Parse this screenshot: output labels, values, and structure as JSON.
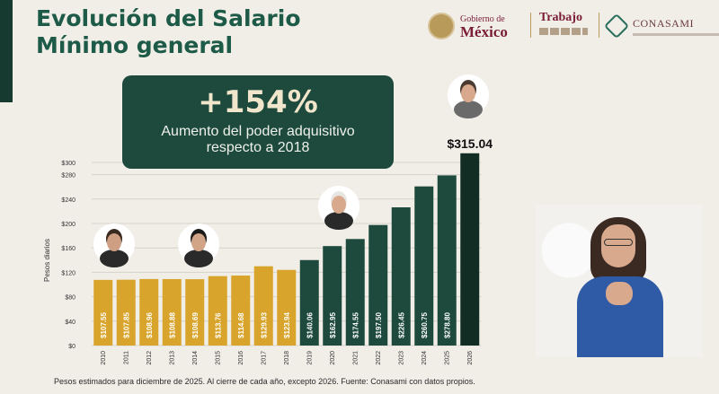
{
  "title": {
    "line1": "Evolución del Salario",
    "line2": "Mínimo general"
  },
  "logos": {
    "gobierno_small": "Gobierno de",
    "gobierno_big": "México",
    "trabajo": "Trabajo",
    "conasami": "CONASAMI"
  },
  "callout": {
    "value": "+154%",
    "line1": "Aumento del poder adquisitivo",
    "line2": "respecto a 2018"
  },
  "highlight_label": "$315.04",
  "footnote": "Pesos estimados para diciembre de 2025. Al cierre de cada año, excepto 2026. Fuente: Conasami con datos propios.",
  "colors": {
    "gold": "#d9a42b",
    "green": "#1d4a3d",
    "dark": "#122e24",
    "title": "#1d5a47"
  },
  "chart_data": {
    "type": "bar",
    "ylabel": "Pesos diarios",
    "ylim": [
      0,
      300
    ],
    "yticks": [
      "$0",
      "$40",
      "$80",
      "$120",
      "$160",
      "$200",
      "$240",
      "$280",
      "$300"
    ],
    "ytick_values": [
      0,
      40,
      80,
      120,
      160,
      200,
      240,
      280,
      300
    ],
    "categories": [
      "2010",
      "2011",
      "2012",
      "2013",
      "2014",
      "2015",
      "2016",
      "2017",
      "2018",
      "2019",
      "2020",
      "2021",
      "2022",
      "2023",
      "2024",
      "2025",
      "2026"
    ],
    "values": [
      107.55,
      107.85,
      108.96,
      108.88,
      108.69,
      113.76,
      114.68,
      129.93,
      123.94,
      140.06,
      162.95,
      174.55,
      197.5,
      226.45,
      260.75,
      278.8,
      315.04
    ],
    "value_labels": [
      "$107.55",
      "$107.85",
      "$108.96",
      "$108.88",
      "$108.69",
      "$113.76",
      "$114.68",
      "$129.93",
      "$123.94",
      "$140.06",
      "$162.95",
      "$174.55",
      "$197.50",
      "$226.45",
      "$260.75",
      "$278.80",
      ""
    ],
    "bar_colors": [
      "gold",
      "gold",
      "gold",
      "gold",
      "gold",
      "gold",
      "gold",
      "gold",
      "gold",
      "green",
      "green",
      "green",
      "green",
      "green",
      "green",
      "green",
      "dark"
    ],
    "grid": true
  }
}
